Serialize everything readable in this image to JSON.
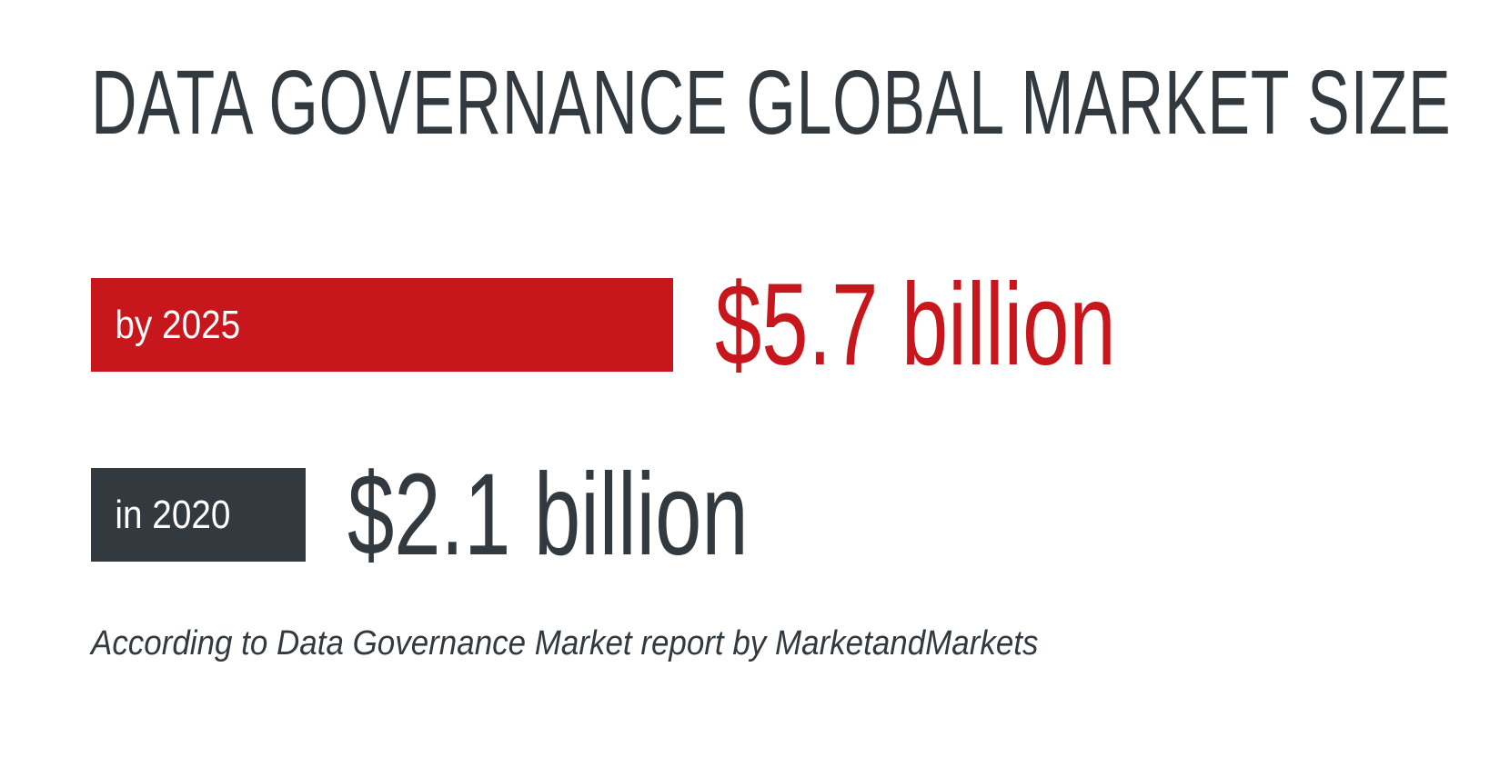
{
  "title": "DATA GOVERNANCE GLOBAL MARKET SIZE",
  "source": "According to Data Governance Market report by MarketandMarkets",
  "colors": {
    "accent": "#c8161d",
    "dark": "#333a3f",
    "background": "#ffffff"
  },
  "chart_data": {
    "type": "bar",
    "title": "DATA GOVERNANCE GLOBAL MARKET SIZE",
    "xlabel": "",
    "ylabel": "",
    "unit": "billion USD",
    "categories": [
      "by 2025",
      "in 2020"
    ],
    "values": [
      5.7,
      2.1
    ],
    "value_labels": [
      "$5.7 billion",
      "$2.1 billion"
    ],
    "bar_colors": [
      "#c8161d",
      "#333a3f"
    ],
    "orientation": "horizontal",
    "grid": false,
    "legend": "none"
  }
}
